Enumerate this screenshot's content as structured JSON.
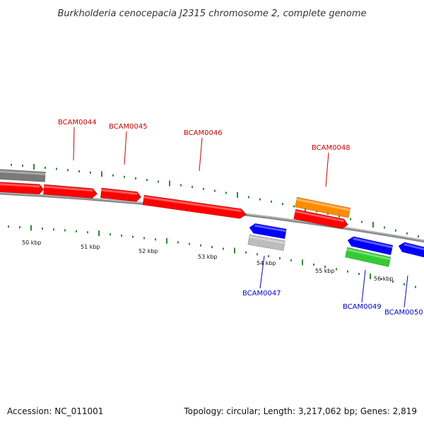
{
  "title": "Burkholderia cenocepacia J2315 chromosome 2, complete genome",
  "footer": {
    "accession": "Accession: NC_011001",
    "summary": "Topology: circular; Length: 3,217,062 bp; Genes: 2,819"
  },
  "colors": {
    "backbone": "#8a8a8a",
    "tick": "#2e8b2e",
    "label_forward": "#cc0000",
    "label_reverse": "#0000cc"
  },
  "scale_labels": [
    "50 kbp",
    "51 kbp",
    "52 kbp",
    "53 kbp",
    "54 kbp",
    "55 kbp",
    "56 kbp"
  ],
  "genes": [
    {
      "name": "BCAM0044",
      "strand": "forward",
      "color": "#ff0000"
    },
    {
      "name": "BCAM0045",
      "strand": "forward",
      "color": "#ff0000"
    },
    {
      "name": "BCAM0046",
      "strand": "forward",
      "color": "#ff0000"
    },
    {
      "name": "BCAM0047",
      "strand": "reverse",
      "color": "#0000ff"
    },
    {
      "name": "BCAM0048",
      "strand": "forward",
      "color": "#ff8c00"
    },
    {
      "name": "BCAM0049",
      "strand": "reverse",
      "color": "#0000ff"
    },
    {
      "name": "BCAM0050",
      "strand": "reverse",
      "color": "#0000ff"
    }
  ]
}
